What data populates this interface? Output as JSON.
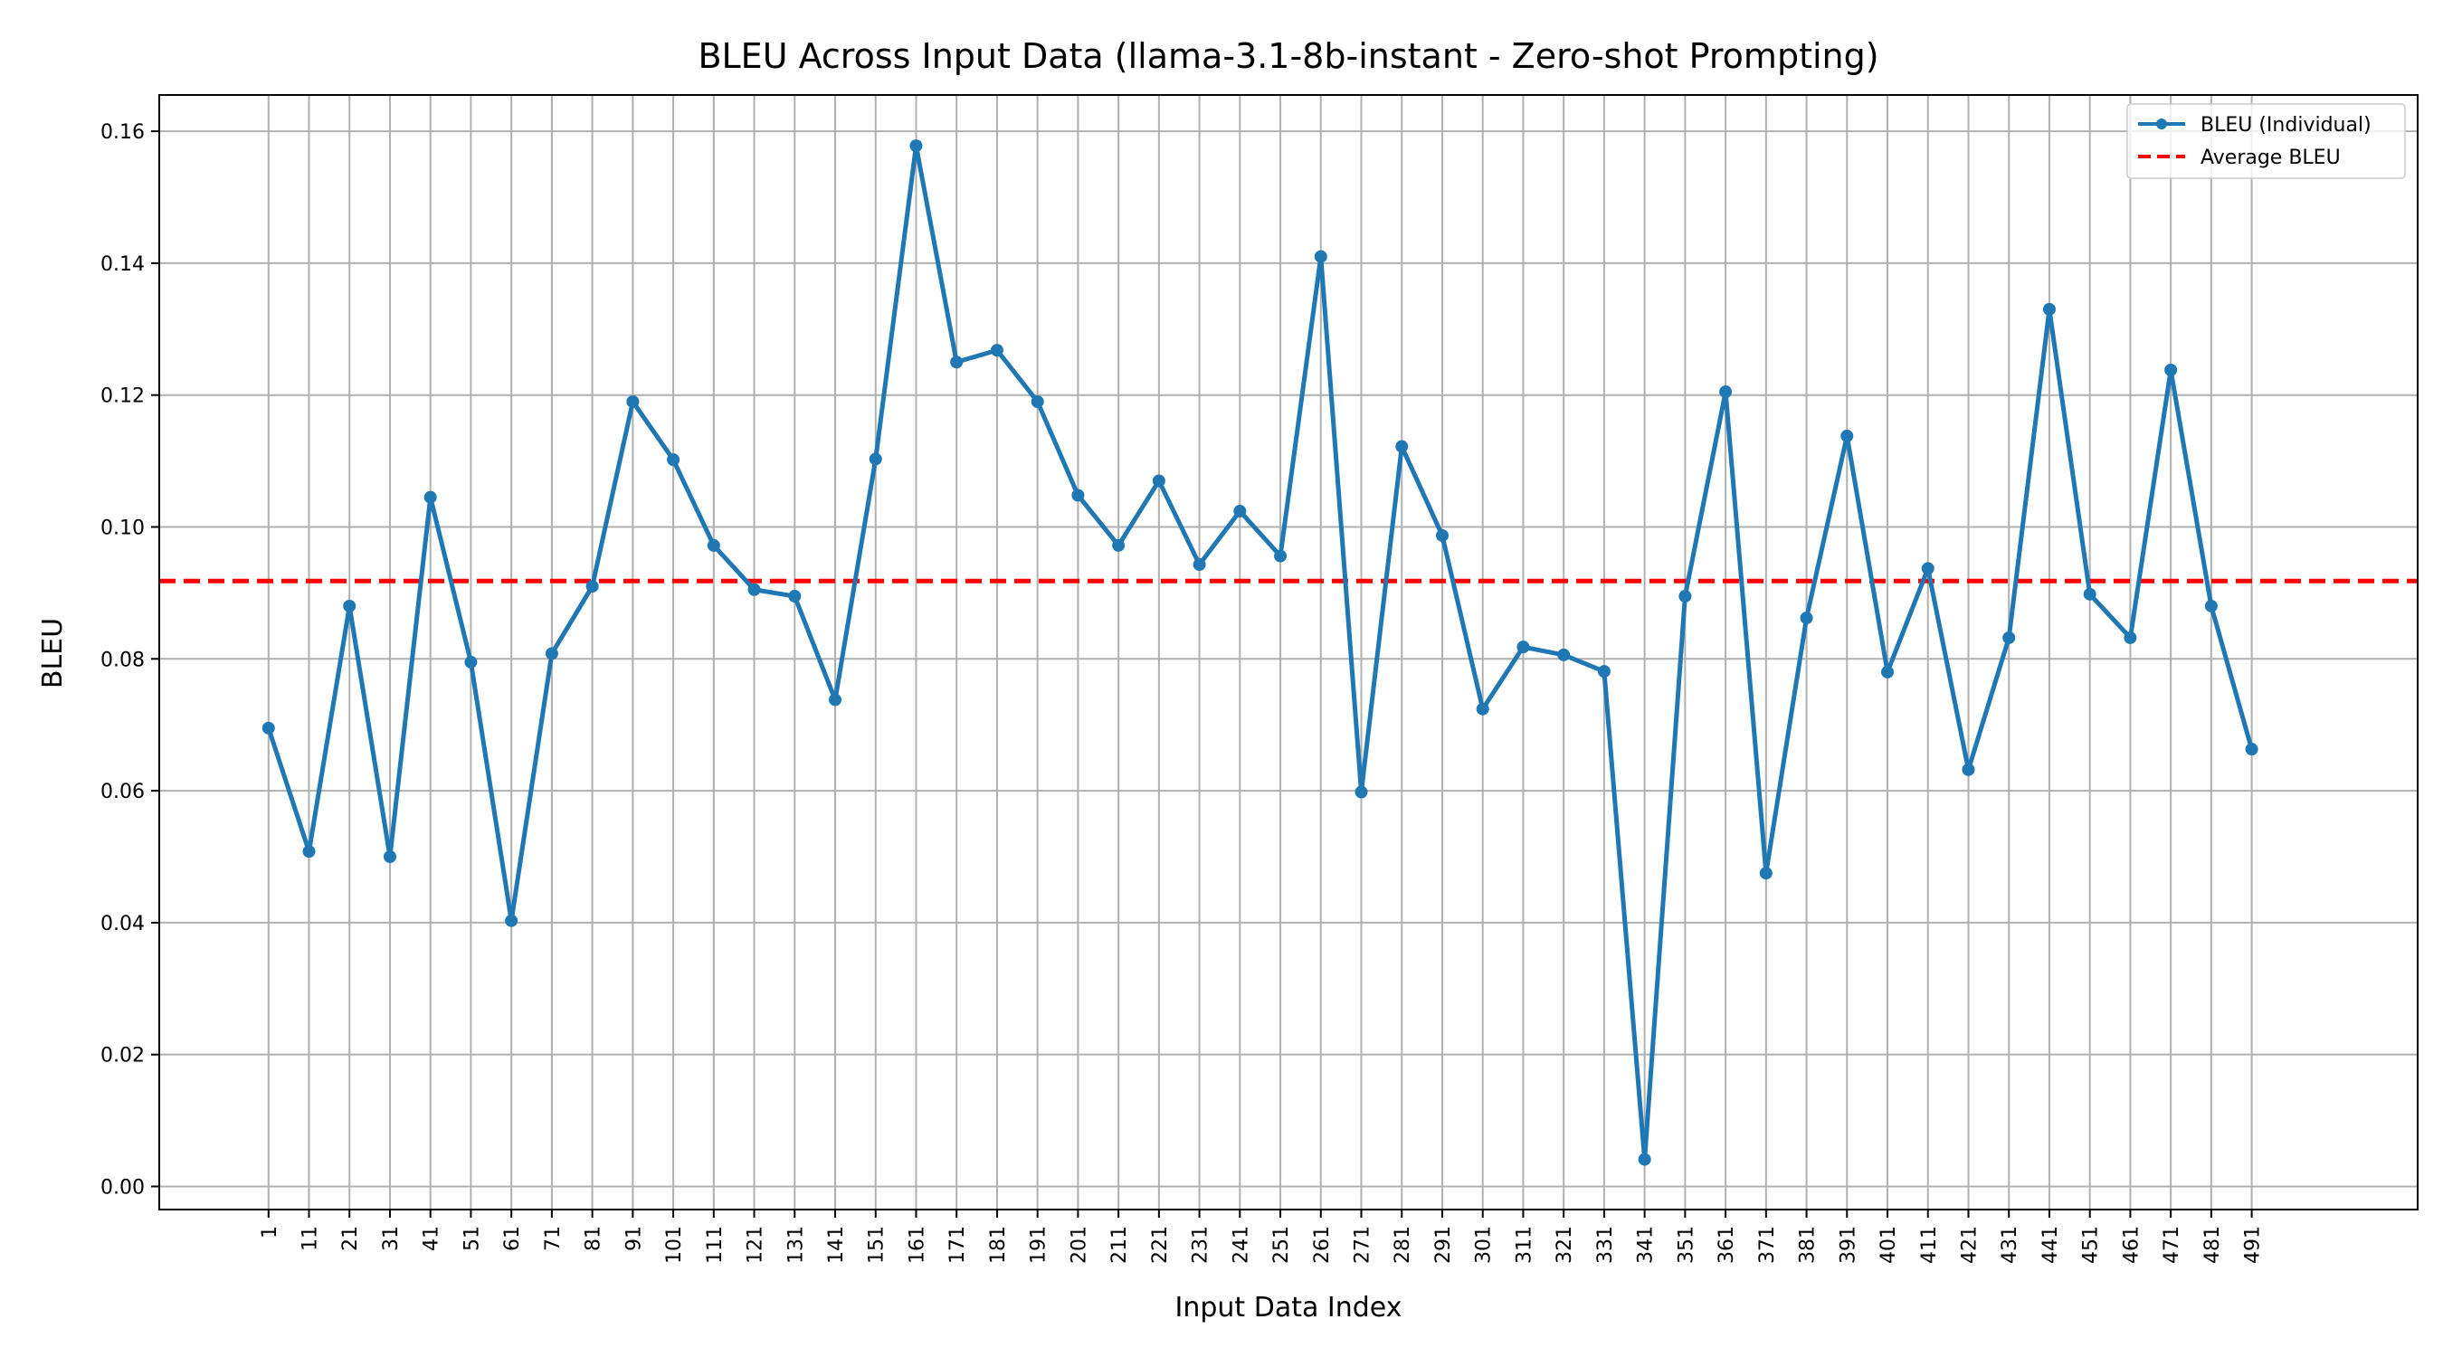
{
  "chart_data": {
    "type": "line",
    "title": "BLEU Across Input Data (llama-3.1-8b-instant - Zero-shot Prompting)",
    "xlabel": "Input Data Index",
    "ylabel": "BLEU",
    "x": [
      1,
      11,
      21,
      31,
      41,
      51,
      61,
      71,
      81,
      91,
      101,
      111,
      121,
      131,
      141,
      151,
      161,
      171,
      181,
      191,
      201,
      211,
      221,
      231,
      241,
      251,
      261,
      271,
      281,
      291,
      301,
      311,
      321,
      331,
      341,
      351,
      361,
      371,
      381,
      391,
      401,
      411,
      421,
      431,
      441,
      451,
      461,
      471,
      481,
      491
    ],
    "x_tick_labels": [
      "1",
      "11",
      "21",
      "31",
      "41",
      "51",
      "61",
      "71",
      "81",
      "91",
      "101",
      "111",
      "121",
      "131",
      "141",
      "151",
      "161",
      "171",
      "181",
      "191",
      "201",
      "211",
      "221",
      "231",
      "241",
      "251",
      "261",
      "271",
      "281",
      "291",
      "301",
      "311",
      "321",
      "331",
      "341",
      "351",
      "361",
      "371",
      "381",
      "391",
      "401",
      "411",
      "421",
      "431",
      "441",
      "451",
      "461",
      "471",
      "481",
      "491"
    ],
    "y_ticks": [
      0.0,
      0.02,
      0.04,
      0.06,
      0.08,
      0.1,
      0.12,
      0.14,
      0.16
    ],
    "y_tick_labels": [
      "0.00",
      "0.02",
      "0.04",
      "0.06",
      "0.08",
      "0.10",
      "0.12",
      "0.14",
      "0.16"
    ],
    "xlim": [
      -26,
      532
    ],
    "ylim": [
      -0.0035,
      0.1655
    ],
    "grid": true,
    "legend_position": "top-right",
    "series": [
      {
        "name": "BLEU (Individual)",
        "color": "#1f77b4",
        "style": "solid-with-markers",
        "values": [
          0.0695,
          0.0508,
          0.088,
          0.05,
          0.1045,
          0.0795,
          0.0403,
          0.0808,
          0.091,
          0.119,
          0.1102,
          0.0972,
          0.0905,
          0.0895,
          0.0738,
          0.1103,
          0.1578,
          0.125,
          0.1268,
          0.119,
          0.1048,
          0.0972,
          0.107,
          0.0943,
          0.1024,
          0.0956,
          0.141,
          0.0598,
          0.1122,
          0.0987,
          0.0724,
          0.0818,
          0.0806,
          0.0781,
          0.0041,
          0.0895,
          0.1205,
          0.0475,
          0.0862,
          0.1138,
          0.078,
          0.0937,
          0.0632,
          0.0832,
          0.133,
          0.0898,
          0.0832,
          0.1238,
          0.088,
          0.0663
        ]
      },
      {
        "name": "Average BLEU",
        "color": "#ff0000",
        "style": "dashed",
        "value": 0.0918
      }
    ]
  }
}
